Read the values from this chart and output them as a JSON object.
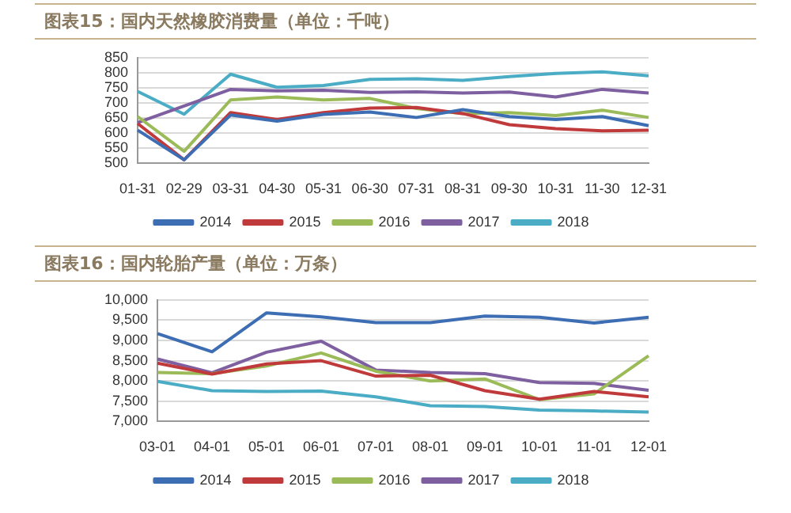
{
  "chart_data": [
    {
      "type": "line",
      "title": "图表15：国内天然橡胶消费量（单位：千吨）",
      "categories": [
        "01-31",
        "02-29",
        "03-31",
        "04-30",
        "05-31",
        "06-30",
        "07-31",
        "08-31",
        "09-30",
        "10-31",
        "11-30",
        "12-31"
      ],
      "series": [
        {
          "name": "2014",
          "color": "#3d6eb4",
          "values": [
            610,
            512,
            660,
            640,
            662,
            670,
            652,
            678,
            655,
            645,
            655,
            625
          ]
        },
        {
          "name": "2015",
          "color": "#c0393b",
          "values": [
            632,
            512,
            668,
            645,
            668,
            683,
            685,
            665,
            628,
            615,
            608,
            610
          ]
        },
        {
          "name": "2016",
          "color": "#9bbb59",
          "values": [
            655,
            540,
            710,
            720,
            710,
            715,
            682,
            665,
            668,
            658,
            676,
            652
          ]
        },
        {
          "name": "2017",
          "color": "#7e5fa0",
          "values": [
            635,
            690,
            745,
            740,
            742,
            735,
            737,
            733,
            736,
            720,
            745,
            733
          ]
        },
        {
          "name": "2018",
          "color": "#4bacc6",
          "values": [
            738,
            663,
            795,
            752,
            758,
            778,
            780,
            775,
            787,
            798,
            803,
            790
          ]
        }
      ],
      "ylim": [
        500,
        850
      ],
      "yticks": [
        500,
        550,
        600,
        650,
        700,
        750,
        800,
        850
      ],
      "grid": "y",
      "legend": "bottom",
      "marker": "none",
      "line_style": "solid"
    },
    {
      "type": "line",
      "title": "图表16：国内轮胎产量（单位：万条）",
      "categories": [
        "03-01",
        "04-01",
        "05-01",
        "06-01",
        "07-01",
        "08-01",
        "09-01",
        "10-01",
        "11-01",
        "12-01"
      ],
      "series": [
        {
          "name": "2014",
          "color": "#3d6eb4",
          "values": [
            9170,
            8720,
            9680,
            9580,
            9440,
            9440,
            9600,
            9570,
            9430,
            9570
          ]
        },
        {
          "name": "2015",
          "color": "#c0393b",
          "values": [
            8440,
            8170,
            8420,
            8500,
            8120,
            8140,
            7760,
            7550,
            7740,
            7610
          ]
        },
        {
          "name": "2016",
          "color": "#9bbb59",
          "values": [
            8210,
            8180,
            8370,
            8690,
            8240,
            8000,
            8050,
            7540,
            7680,
            8620
          ]
        },
        {
          "name": "2017",
          "color": "#7e5fa0",
          "values": [
            8540,
            8200,
            8710,
            8980,
            8270,
            8210,
            8180,
            7960,
            7940,
            7770
          ]
        },
        {
          "name": "2018",
          "color": "#4bacc6",
          "values": [
            7990,
            7760,
            7740,
            7750,
            7610,
            7390,
            7370,
            7280,
            7260,
            7230
          ]
        }
      ],
      "ylim": [
        7000,
        10000
      ],
      "yticks": [
        {
          "value": 7000,
          "label": "7,000"
        },
        {
          "value": 7500,
          "label": "7,500"
        },
        {
          "value": 8000,
          "label": "8,000"
        },
        {
          "value": 8500,
          "label": "8,500"
        },
        {
          "value": 9000,
          "label": "9,000"
        },
        {
          "value": 9500,
          "label": "9,500"
        },
        {
          "value": 10000,
          "label": "10,000"
        }
      ],
      "grid": "y",
      "legend": "bottom",
      "marker": "none",
      "line_style": "solid"
    }
  ]
}
